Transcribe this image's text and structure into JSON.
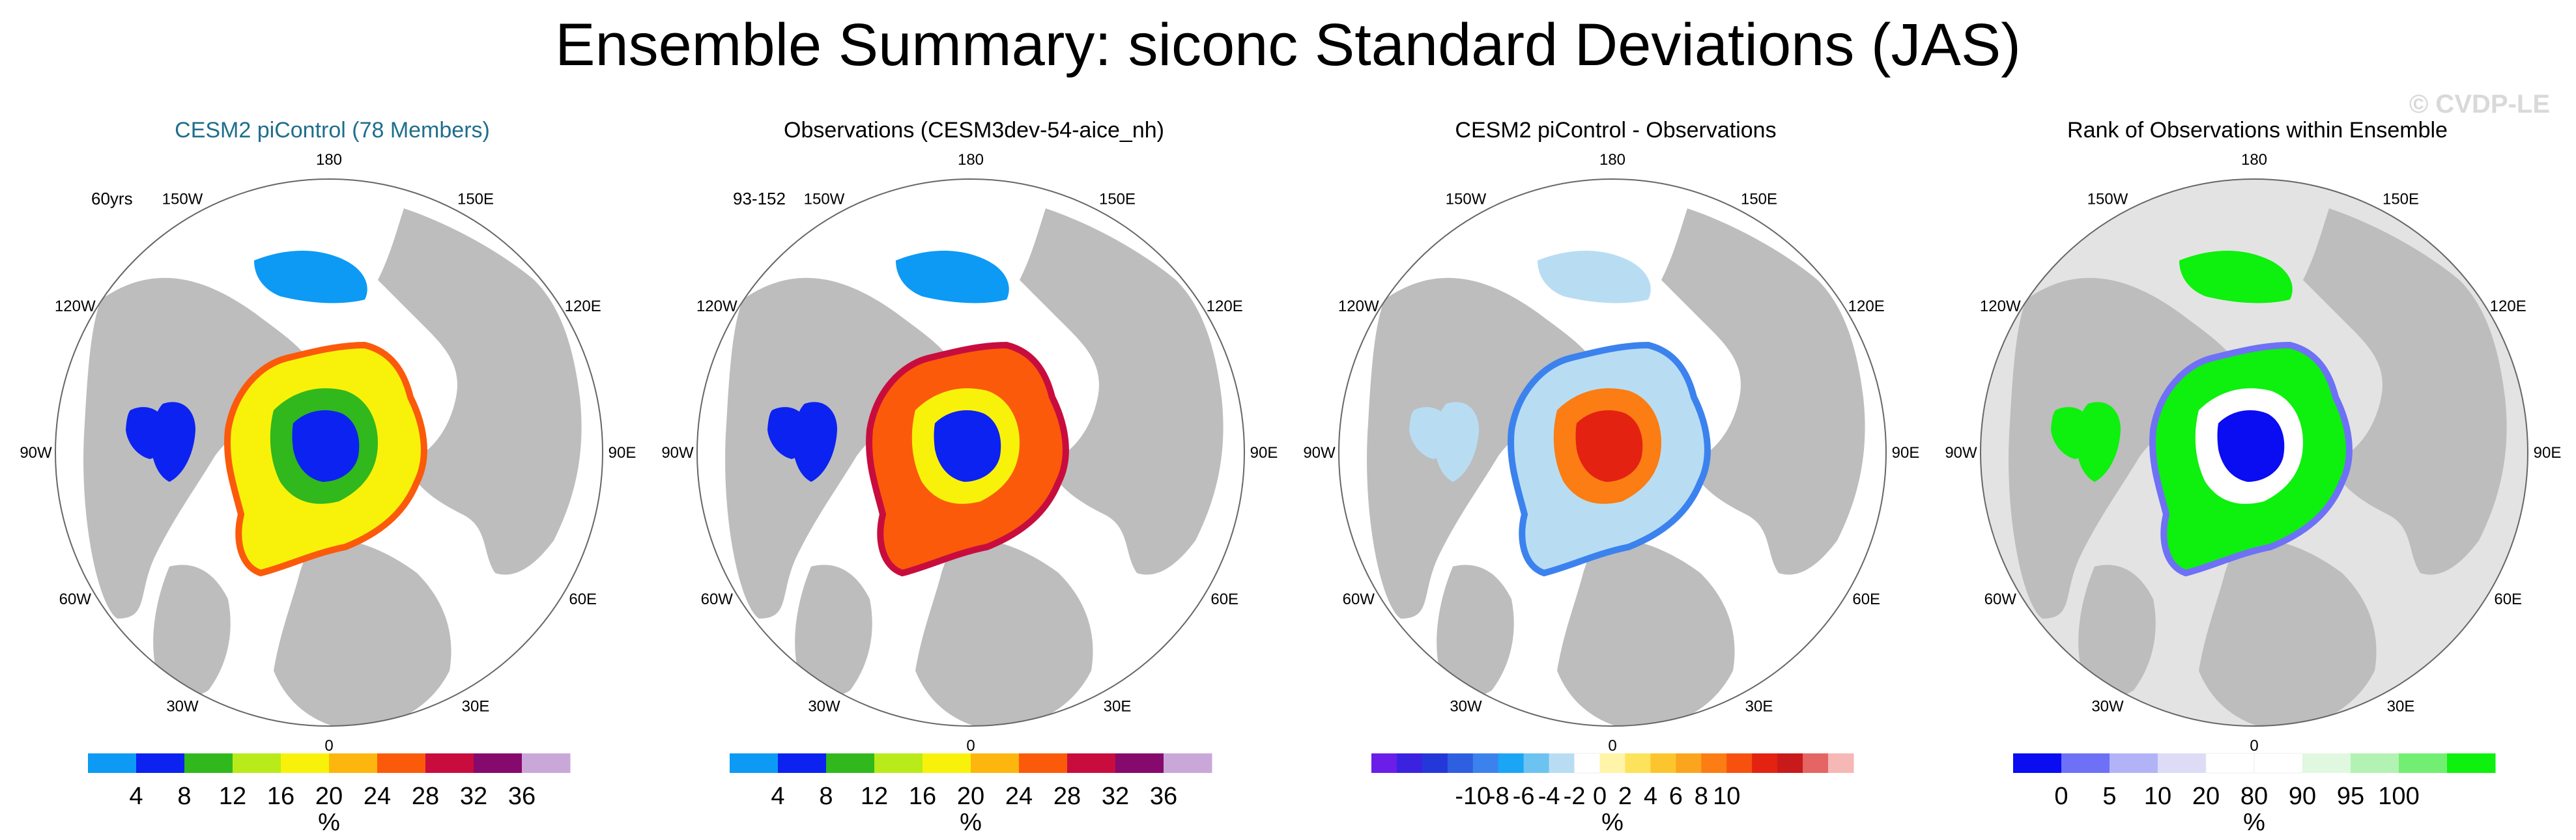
{
  "title": "Ensemble Summary: siconc Standard Deviations (JAS)",
  "watermark": "© CVDP-LE",
  "lon_labels": [
    "180",
    "150E",
    "120E",
    "90E",
    "60E",
    "30E",
    "0",
    "30W",
    "60W",
    "90W",
    "120W",
    "150W"
  ],
  "panels": [
    {
      "title": "CESM2 piControl (78 Members)",
      "title_color": "#1f6e8c",
      "tag": "60yrs",
      "colorbar": {
        "unit": "%",
        "colors": [
          "#0c9af5",
          "#0c22f0",
          "#31b81c",
          "#b9ea19",
          "#f8f20b",
          "#fdb60d",
          "#fb5a0b",
          "#c80d3e",
          "#86096d",
          "#c9a8d9"
        ],
        "ticks": [
          "4",
          "8",
          "12",
          "16",
          "20",
          "24",
          "28",
          "32",
          "36"
        ]
      }
    },
    {
      "title": "Observations (CESM3dev-54-aice_nh)",
      "title_color": "#000000",
      "tag": "93-152",
      "colorbar": {
        "unit": "%",
        "colors": [
          "#0c9af5",
          "#0c22f0",
          "#31b81c",
          "#b9ea19",
          "#f8f20b",
          "#fdb60d",
          "#fb5a0b",
          "#c80d3e",
          "#86096d",
          "#c9a8d9"
        ],
        "ticks": [
          "4",
          "8",
          "12",
          "16",
          "20",
          "24",
          "28",
          "32",
          "36"
        ]
      }
    },
    {
      "title": "CESM2 piControl - Observations",
      "title_color": "#000000",
      "tag": "",
      "colorbar": {
        "unit": "%",
        "colors": [
          "#6a1ee8",
          "#3b22e0",
          "#2437d8",
          "#2d5fe0",
          "#3c82ee",
          "#1aa6f5",
          "#6cc3f0",
          "#b8ddf3",
          "#ffffff",
          "#fff4a8",
          "#fde25c",
          "#fcc52e",
          "#fba41d",
          "#fb7d13",
          "#f6510f",
          "#e32212",
          "#c81a1a",
          "#e56565",
          "#f6b7b7"
        ],
        "ticks": [
          "-10",
          "-8",
          "-6",
          "-4",
          "-2",
          "0",
          "2",
          "4",
          "6",
          "8",
          "10"
        ]
      }
    },
    {
      "title": "Rank of Observations within Ensemble",
      "title_color": "#000000",
      "tag": "",
      "colorbar": {
        "unit": "%",
        "colors": [
          "#0a0cf2",
          "#6e71f5",
          "#b2b3f7",
          "#dcdcf6",
          "#ffffff",
          "#ffffff",
          "#dff8df",
          "#b2f2b2",
          "#72ee72",
          "#0ef00e"
        ],
        "ticks": [
          "0",
          "5",
          "10",
          "20",
          "80",
          "90",
          "95",
          "100"
        ]
      }
    }
  ]
}
